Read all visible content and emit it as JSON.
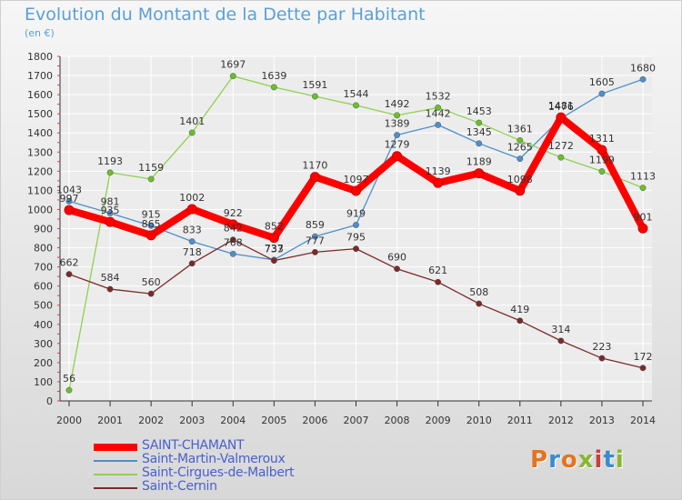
{
  "title": "Evolution du Montant de la Dette par Habitant",
  "subtitle": "(en €)",
  "logo": {
    "text": "Proxiti",
    "colors": [
      "#e8731e",
      "#3a8ad0",
      "#e8731e",
      "#8ab62e",
      "#d23a3a",
      "#3a8ad0",
      "#8ab62e"
    ]
  },
  "chart_data": {
    "type": "line",
    "title": "Evolution du Montant de la Dette par Habitant",
    "ylabel": "(en €)",
    "xlabel": "",
    "x": [
      "2000",
      "2001",
      "2002",
      "2003",
      "2004",
      "2005",
      "2006",
      "2007",
      "2008",
      "2009",
      "2010",
      "2011",
      "2012",
      "2013",
      "2014"
    ],
    "ylim": [
      0,
      1800
    ],
    "yticks": [
      0,
      100,
      200,
      300,
      400,
      500,
      600,
      700,
      800,
      900,
      1000,
      1100,
      1200,
      1300,
      1400,
      1500,
      1600,
      1700,
      1800
    ],
    "grid": true,
    "legend_position": "bottom-left",
    "series": [
      {
        "name": "Saint-Martin-Valmeroux",
        "color": "#4d8fcc",
        "marker": "#4d8fcc",
        "values": [
          1043,
          981,
          915,
          833,
          768,
          737,
          859,
          919,
          1389,
          1442,
          1345,
          1265,
          1476,
          1605,
          1680
        ]
      },
      {
        "name": "Saint-Cirgues-de-Malbert",
        "color": "#8fd14f",
        "marker": "#6abf2a",
        "values": [
          56,
          1193,
          1159,
          1401,
          1697,
          1639,
          1591,
          1544,
          1492,
          1532,
          1453,
          1361,
          1272,
          1199,
          1113
        ]
      },
      {
        "name": "Saint-Cernin",
        "color": "#7a2a2a",
        "marker": "#7a2a2a",
        "values": [
          662,
          584,
          560,
          718,
          842,
          733,
          777,
          795,
          690,
          621,
          508,
          419,
          314,
          223,
          172
        ]
      },
      {
        "name": "SAINT-CHAMANT",
        "color": "#ff0000",
        "marker": "#ff0000",
        "values": [
          997,
          935,
          865,
          1002,
          922,
          852,
          1170,
          1097,
          1279,
          1139,
          1189,
          1098,
          1481,
          1311,
          901
        ]
      }
    ]
  },
  "legend": [
    {
      "label": "SAINT-CHAMANT",
      "color": "#ff0000",
      "thick": true
    },
    {
      "label": "Saint-Martin-Valmeroux",
      "color": "#4d8fcc",
      "thick": false
    },
    {
      "label": "Saint-Cirgues-de-Malbert",
      "color": "#8fd14f",
      "thick": false
    },
    {
      "label": "Saint-Cernin",
      "color": "#7a2a2a",
      "thick": false
    }
  ]
}
